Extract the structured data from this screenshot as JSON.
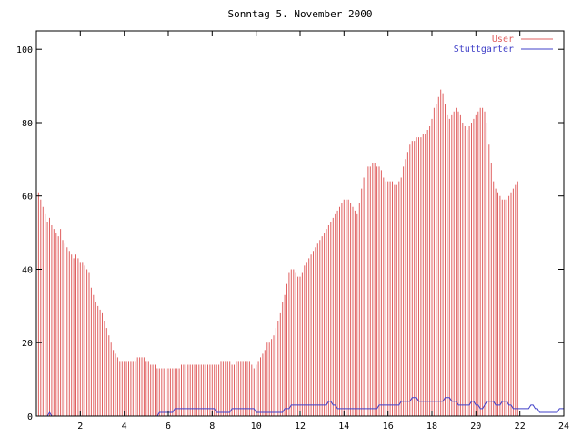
{
  "chart_data": {
    "type": "bar",
    "title": "Sonntag 5. November 2000",
    "xlabel": "",
    "ylabel": "",
    "xlim": [
      0,
      24
    ],
    "ylim": [
      0,
      105
    ],
    "x_ticks": [
      2,
      4,
      6,
      8,
      10,
      12,
      14,
      16,
      18,
      20,
      22,
      24
    ],
    "y_ticks": [
      0,
      20,
      40,
      60,
      80,
      100
    ],
    "grid": false,
    "legend_position": "top-right",
    "x_step_hours": 0.1,
    "series": [
      {
        "name": "User",
        "style": "impulses",
        "color": "#e06060",
        "values": [
          63,
          61,
          59,
          57,
          55,
          53,
          54,
          52,
          51,
          50,
          49,
          51,
          48,
          47,
          46,
          45,
          44,
          43,
          44,
          43,
          42,
          42,
          41,
          40,
          39,
          35,
          33,
          31,
          30,
          29,
          28,
          26,
          24,
          22,
          20,
          18,
          17,
          16,
          15,
          15,
          15,
          15,
          15,
          15,
          15,
          15,
          16,
          16,
          16,
          16,
          15,
          15,
          14,
          14,
          14,
          13,
          13,
          13,
          13,
          13,
          13,
          13,
          13,
          13,
          13,
          13,
          14,
          14,
          14,
          14,
          14,
          14,
          14,
          14,
          14,
          14,
          14,
          14,
          14,
          14,
          14,
          14,
          14,
          14,
          15,
          15,
          15,
          15,
          15,
          14,
          14,
          15,
          15,
          15,
          15,
          15,
          15,
          15,
          14,
          13,
          14,
          15,
          16,
          17,
          18,
          20,
          20,
          21,
          22,
          24,
          26,
          28,
          31,
          33,
          36,
          39,
          40,
          40,
          39,
          38,
          38,
          39,
          41,
          42,
          43,
          44,
          45,
          46,
          47,
          48,
          49,
          50,
          51,
          52,
          53,
          54,
          55,
          56,
          57,
          58,
          59,
          59,
          59,
          58,
          57,
          56,
          55,
          58,
          62,
          65,
          67,
          68,
          68,
          69,
          69,
          68,
          68,
          67,
          65,
          64,
          64,
          64,
          64,
          63,
          63,
          64,
          65,
          68,
          70,
          72,
          74,
          75,
          75,
          76,
          76,
          76,
          77,
          77,
          78,
          79,
          81,
          84,
          85,
          87,
          89,
          88,
          85,
          82,
          81,
          82,
          83,
          84,
          83,
          82,
          80,
          79,
          78,
          79,
          80,
          81,
          82,
          83,
          84,
          84,
          83,
          80,
          74,
          69,
          64,
          62,
          61,
          60,
          59,
          59,
          59,
          60,
          61,
          62,
          63,
          64
        ],
        "ylim_note": "impulse heights in data units"
      },
      {
        "name": "Stuttgarter",
        "style": "line",
        "color": "#4040c8",
        "values": [
          0,
          0,
          0,
          0,
          0,
          0,
          1,
          0,
          0,
          0,
          0,
          0,
          0,
          0,
          0,
          0,
          0,
          0,
          0,
          0,
          0,
          0,
          0,
          0,
          0,
          0,
          0,
          0,
          0,
          0,
          0,
          0,
          0,
          0,
          0,
          0,
          0,
          0,
          0,
          0,
          0,
          0,
          0,
          0,
          0,
          0,
          0,
          0,
          0,
          0,
          0,
          0,
          0,
          0,
          0,
          0,
          1,
          1,
          1,
          1,
          1,
          1,
          1,
          2,
          2,
          2,
          2,
          2,
          2,
          2,
          2,
          2,
          2,
          2,
          2,
          2,
          2,
          2,
          2,
          2,
          2,
          2,
          1,
          1,
          1,
          1,
          1,
          1,
          1,
          2,
          2,
          2,
          2,
          2,
          2,
          2,
          2,
          2,
          2,
          2,
          1,
          1,
          1,
          1,
          1,
          1,
          1,
          1,
          1,
          1,
          1,
          1,
          1,
          2,
          2,
          2,
          3,
          3,
          3,
          3,
          3,
          3,
          3,
          3,
          3,
          3,
          3,
          3,
          3,
          3,
          3,
          3,
          3,
          4,
          4,
          3,
          3,
          2,
          2,
          2,
          2,
          2,
          2,
          2,
          2,
          2,
          2,
          2,
          2,
          2,
          2,
          2,
          2,
          2,
          2,
          2,
          3,
          3,
          3,
          3,
          3,
          3,
          3,
          3,
          3,
          3,
          4,
          4,
          4,
          4,
          4,
          5,
          5,
          5,
          4,
          4,
          4,
          4,
          4,
          4,
          4,
          4,
          4,
          4,
          4,
          4,
          5,
          5,
          5,
          4,
          4,
          4,
          3,
          3,
          3,
          3,
          3,
          3,
          4,
          4,
          3,
          3,
          2,
          2,
          3,
          4,
          4,
          4,
          4,
          3,
          3,
          3,
          4,
          4,
          4,
          3,
          3,
          2,
          2,
          2,
          2,
          2,
          2,
          2,
          2,
          3,
          3,
          2,
          2,
          1,
          1,
          1,
          1,
          1,
          1,
          1,
          1,
          1,
          2,
          2,
          2
        ]
      }
    ]
  }
}
